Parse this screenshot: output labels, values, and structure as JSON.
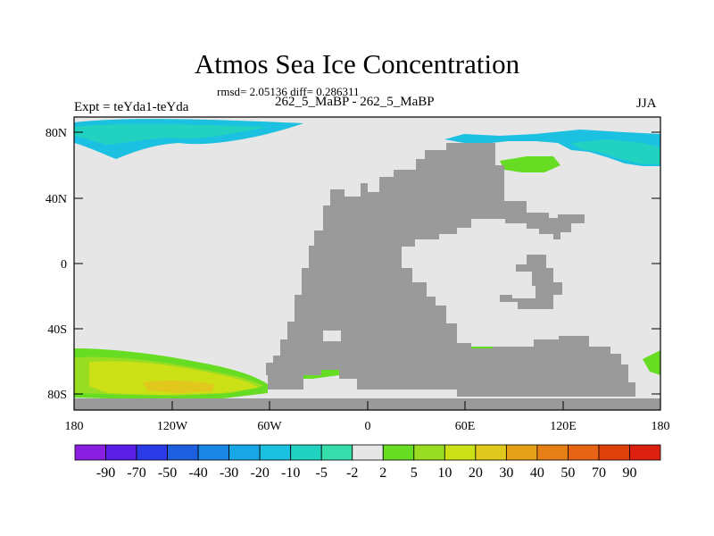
{
  "figure": {
    "title": "Atmos Sea Ice Concentration",
    "stats": "rmsd= 2.05136 diff= 0.286311",
    "experiment": "Expt = teYda1-teYda",
    "period": "262_5_MaBP - 262_5_MaBP",
    "season": "JJA"
  },
  "map": {
    "lat_ticks": [
      "80N",
      "40N",
      "0",
      "40S",
      "80S"
    ],
    "lon_ticks": [
      "180",
      "120W",
      "60W",
      "0",
      "60E",
      "120E",
      "180"
    ]
  },
  "colorbar": {
    "labels": [
      "-90",
      "-70",
      "-50",
      "-40",
      "-30",
      "-20",
      "-10",
      "-5",
      "-2",
      "2",
      "5",
      "10",
      "20",
      "30",
      "40",
      "50",
      "70",
      "90"
    ],
    "colors": [
      "#8a1ee0",
      "#5a1ee6",
      "#2a3ae6",
      "#1c60e0",
      "#1a86e6",
      "#18a6e6",
      "#1cc0e0",
      "#22d2c0",
      "#36dcaa",
      "#e6e6e6",
      "#66dd22",
      "#99dd22",
      "#cce016",
      "#e0c81c",
      "#e6a018",
      "#e68016",
      "#e66414",
      "#e0400c",
      "#dc2010"
    ]
  },
  "colors": {
    "land": "#9a9a9a",
    "neutral": "#e6e6e6",
    "frame": "#000000"
  }
}
